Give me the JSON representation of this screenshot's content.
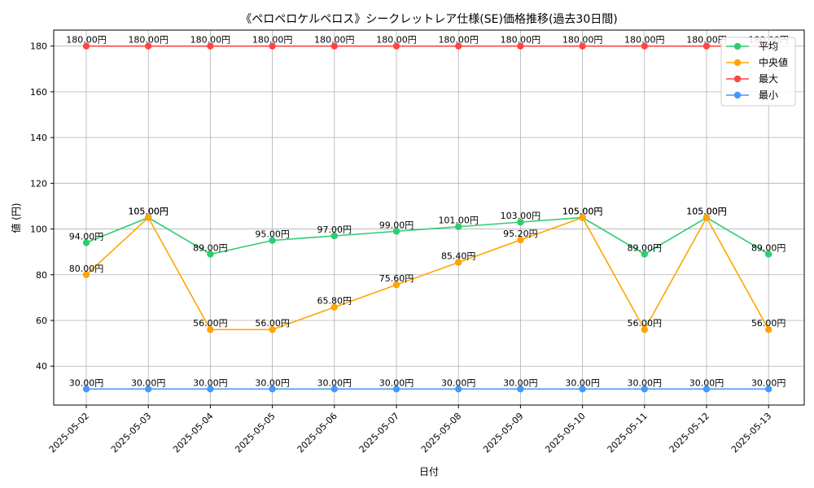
{
  "chart_data": {
    "type": "line",
    "title": "《ペロペロケルペロス》シークレットレア仕様(SE)価格推移(過去30日間)",
    "xlabel": "日付",
    "ylabel": "値 (円)",
    "categories": [
      "2025-05-02",
      "2025-05-03",
      "2025-05-04",
      "2025-05-05",
      "2025-05-06",
      "2025-05-07",
      "2025-05-08",
      "2025-05-09",
      "2025-05-10",
      "2025-05-11",
      "2025-05-12",
      "2025-05-13"
    ],
    "ylim": [
      23,
      187
    ],
    "yticks": [
      40,
      60,
      80,
      100,
      120,
      140,
      160,
      180
    ],
    "grid": true,
    "legend_position": "top-right",
    "series": [
      {
        "name": "平均",
        "color": "#2ecc71",
        "values": [
          94,
          105,
          89,
          95,
          97,
          99,
          101,
          103,
          105,
          89,
          105,
          89
        ]
      },
      {
        "name": "中央値",
        "color": "#ffa500",
        "values": [
          80,
          105,
          56,
          56,
          65.8,
          75.6,
          85.4,
          95.2,
          105,
          56,
          105,
          56
        ]
      },
      {
        "name": "最大",
        "color": "#ff4444",
        "values": [
          180,
          180,
          180,
          180,
          180,
          180,
          180,
          180,
          180,
          180,
          180,
          180
        ]
      },
      {
        "name": "最小",
        "color": "#4499ff",
        "values": [
          30,
          30,
          30,
          30,
          30,
          30,
          30,
          30,
          30,
          30,
          30,
          30
        ]
      }
    ],
    "value_suffix": "円"
  }
}
